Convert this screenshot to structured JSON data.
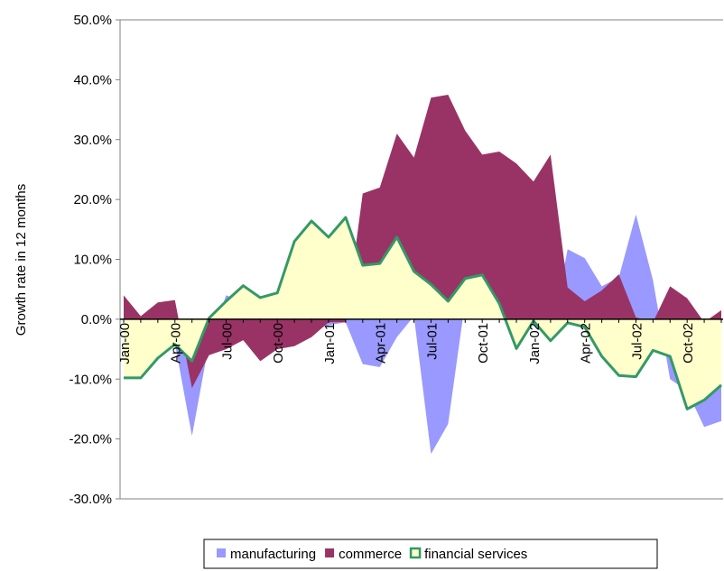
{
  "chart_data": {
    "type": "area",
    "y_label": "Growth rate in 12 months",
    "categories": [
      "Jan-00",
      null,
      null,
      "Apr-00",
      null,
      null,
      "Jul-00",
      null,
      null,
      "Oct-00",
      null,
      null,
      "Jan-01",
      null,
      null,
      "Apr-01",
      null,
      null,
      "Jul-01",
      null,
      null,
      "Oct-01",
      null,
      null,
      "Jan-02",
      null,
      null,
      "Apr-02",
      null,
      null,
      "Jul-02",
      null,
      null,
      "Oct-02",
      null,
      null
    ],
    "ylim": [
      -30,
      50
    ],
    "yticks": [
      {
        "value": -30,
        "label": "-30.0%"
      },
      {
        "value": -20,
        "label": "-20.0%"
      },
      {
        "value": -10,
        "label": "-10.0%"
      },
      {
        "value": 0,
        "label": "0.0%"
      },
      {
        "value": 10,
        "label": "10.0%"
      },
      {
        "value": 20,
        "label": "20.0%"
      },
      {
        "value": 30,
        "label": "30.0%"
      },
      {
        "value": 40,
        "label": "40.0%"
      },
      {
        "value": 50,
        "label": "50.0%"
      }
    ],
    "grid": false,
    "legend": "bottom",
    "series": [
      {
        "name": "manufacturing",
        "color": "#9999ff",
        "values": [
          -3,
          -2,
          -3,
          -4,
          -19.5,
          -4,
          4,
          3,
          -2,
          -2,
          -1,
          -2,
          -1,
          -0.5,
          -7.5,
          -8,
          -3,
          0.5,
          -22.5,
          -17.5,
          3,
          2,
          2,
          0,
          -1,
          -3,
          11.7,
          10.2,
          5.5,
          7,
          17.5,
          6.5,
          -10,
          -12,
          -18,
          -17
        ]
      },
      {
        "name": "commerce",
        "color": "#993366",
        "values": [
          4,
          0.5,
          2.8,
          3.2,
          -11.5,
          -6,
          -5,
          -3.5,
          -7,
          -5,
          -4.5,
          -3,
          -0.5,
          -0.5,
          21,
          22,
          31,
          27,
          37,
          37.5,
          31.5,
          27.5,
          28,
          26,
          23,
          27.5,
          5.3,
          3,
          4.8,
          7.5,
          0.3,
          -0.5,
          5.5,
          3.5,
          -0.5,
          1.5
        ]
      },
      {
        "name": "financial services",
        "color": "#ffffcc",
        "line_color": "#339966",
        "values": [
          -9.8,
          -9.8,
          -6.5,
          -4.2,
          -7,
          0.2,
          3,
          5.6,
          3.6,
          4.4,
          13,
          16.4,
          13.7,
          17,
          9,
          9.3,
          13.7,
          8,
          5.8,
          3,
          6.8,
          7.4,
          2.6,
          -4.9,
          -0.3,
          -3.6,
          -0.6,
          -1.3,
          -6.2,
          -9.4,
          -9.6,
          -5.2,
          -6.2,
          -15,
          -13.5,
          -11
        ]
      }
    ]
  }
}
